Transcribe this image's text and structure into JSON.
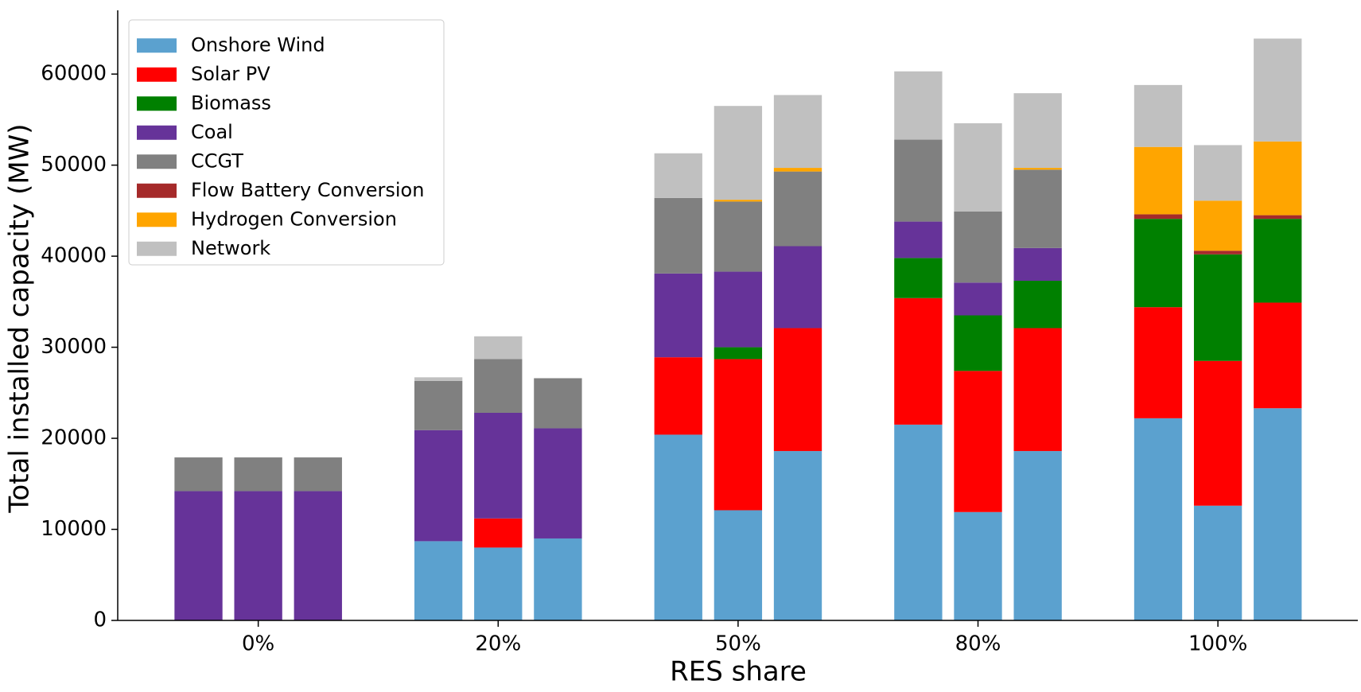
{
  "chart_data": {
    "type": "bar",
    "stacked": true,
    "xlabel": "RES share",
    "ylabel": "Total installed capacity (MW)",
    "categories": [
      null,
      "0%",
      null,
      null,
      "20%",
      null,
      null,
      "50%",
      null,
      null,
      "80%",
      null,
      null,
      "100%",
      null
    ],
    "series": [
      {
        "name": "Onshore Wind",
        "color": "#5ba1cf",
        "values": [
          0,
          0,
          0,
          8700,
          8000,
          9000,
          20400,
          12100,
          18600,
          21500,
          11900,
          18600,
          22200,
          12600,
          23300
        ]
      },
      {
        "name": "Solar PV",
        "color": "#ff0000",
        "values": [
          0,
          0,
          0,
          0,
          3200,
          0,
          8500,
          16600,
          13500,
          13900,
          15500,
          13500,
          12200,
          15900,
          11600
        ]
      },
      {
        "name": "Biomass",
        "color": "#008000",
        "values": [
          0,
          0,
          0,
          0,
          0,
          0,
          0,
          1300,
          0,
          4400,
          6100,
          5200,
          9700,
          11700,
          9200
        ]
      },
      {
        "name": "Coal",
        "color": "#663399",
        "values": [
          14200,
          14200,
          14200,
          12200,
          11600,
          12100,
          9200,
          8300,
          9000,
          4000,
          3600,
          3600,
          0,
          0,
          0
        ]
      },
      {
        "name": "CCGT",
        "color": "#808080",
        "values": [
          3700,
          3700,
          3700,
          5400,
          5900,
          5500,
          8300,
          7700,
          8200,
          9000,
          7800,
          8600,
          0,
          0,
          0
        ]
      },
      {
        "name": "Flow Battery Conversion",
        "color": "#a52a2a",
        "values": [
          0,
          0,
          0,
          0,
          0,
          0,
          0,
          0,
          0,
          0,
          0,
          0,
          500,
          400,
          400
        ]
      },
      {
        "name": "Hydrogen Conversion",
        "color": "#ffa500",
        "values": [
          0,
          0,
          0,
          0,
          0,
          0,
          0,
          200,
          400,
          0,
          0,
          200,
          7400,
          5500,
          8100
        ]
      },
      {
        "name": "Network",
        "color": "#c0c0c0",
        "values": [
          0,
          0,
          0,
          400,
          2500,
          0,
          4900,
          10300,
          8000,
          7500,
          9700,
          8200,
          6800,
          6100,
          11300
        ]
      }
    ],
    "ylim": [
      0,
      67000
    ],
    "yticks": [
      0,
      10000,
      20000,
      30000,
      40000,
      50000,
      60000
    ],
    "legend": "upper left"
  }
}
